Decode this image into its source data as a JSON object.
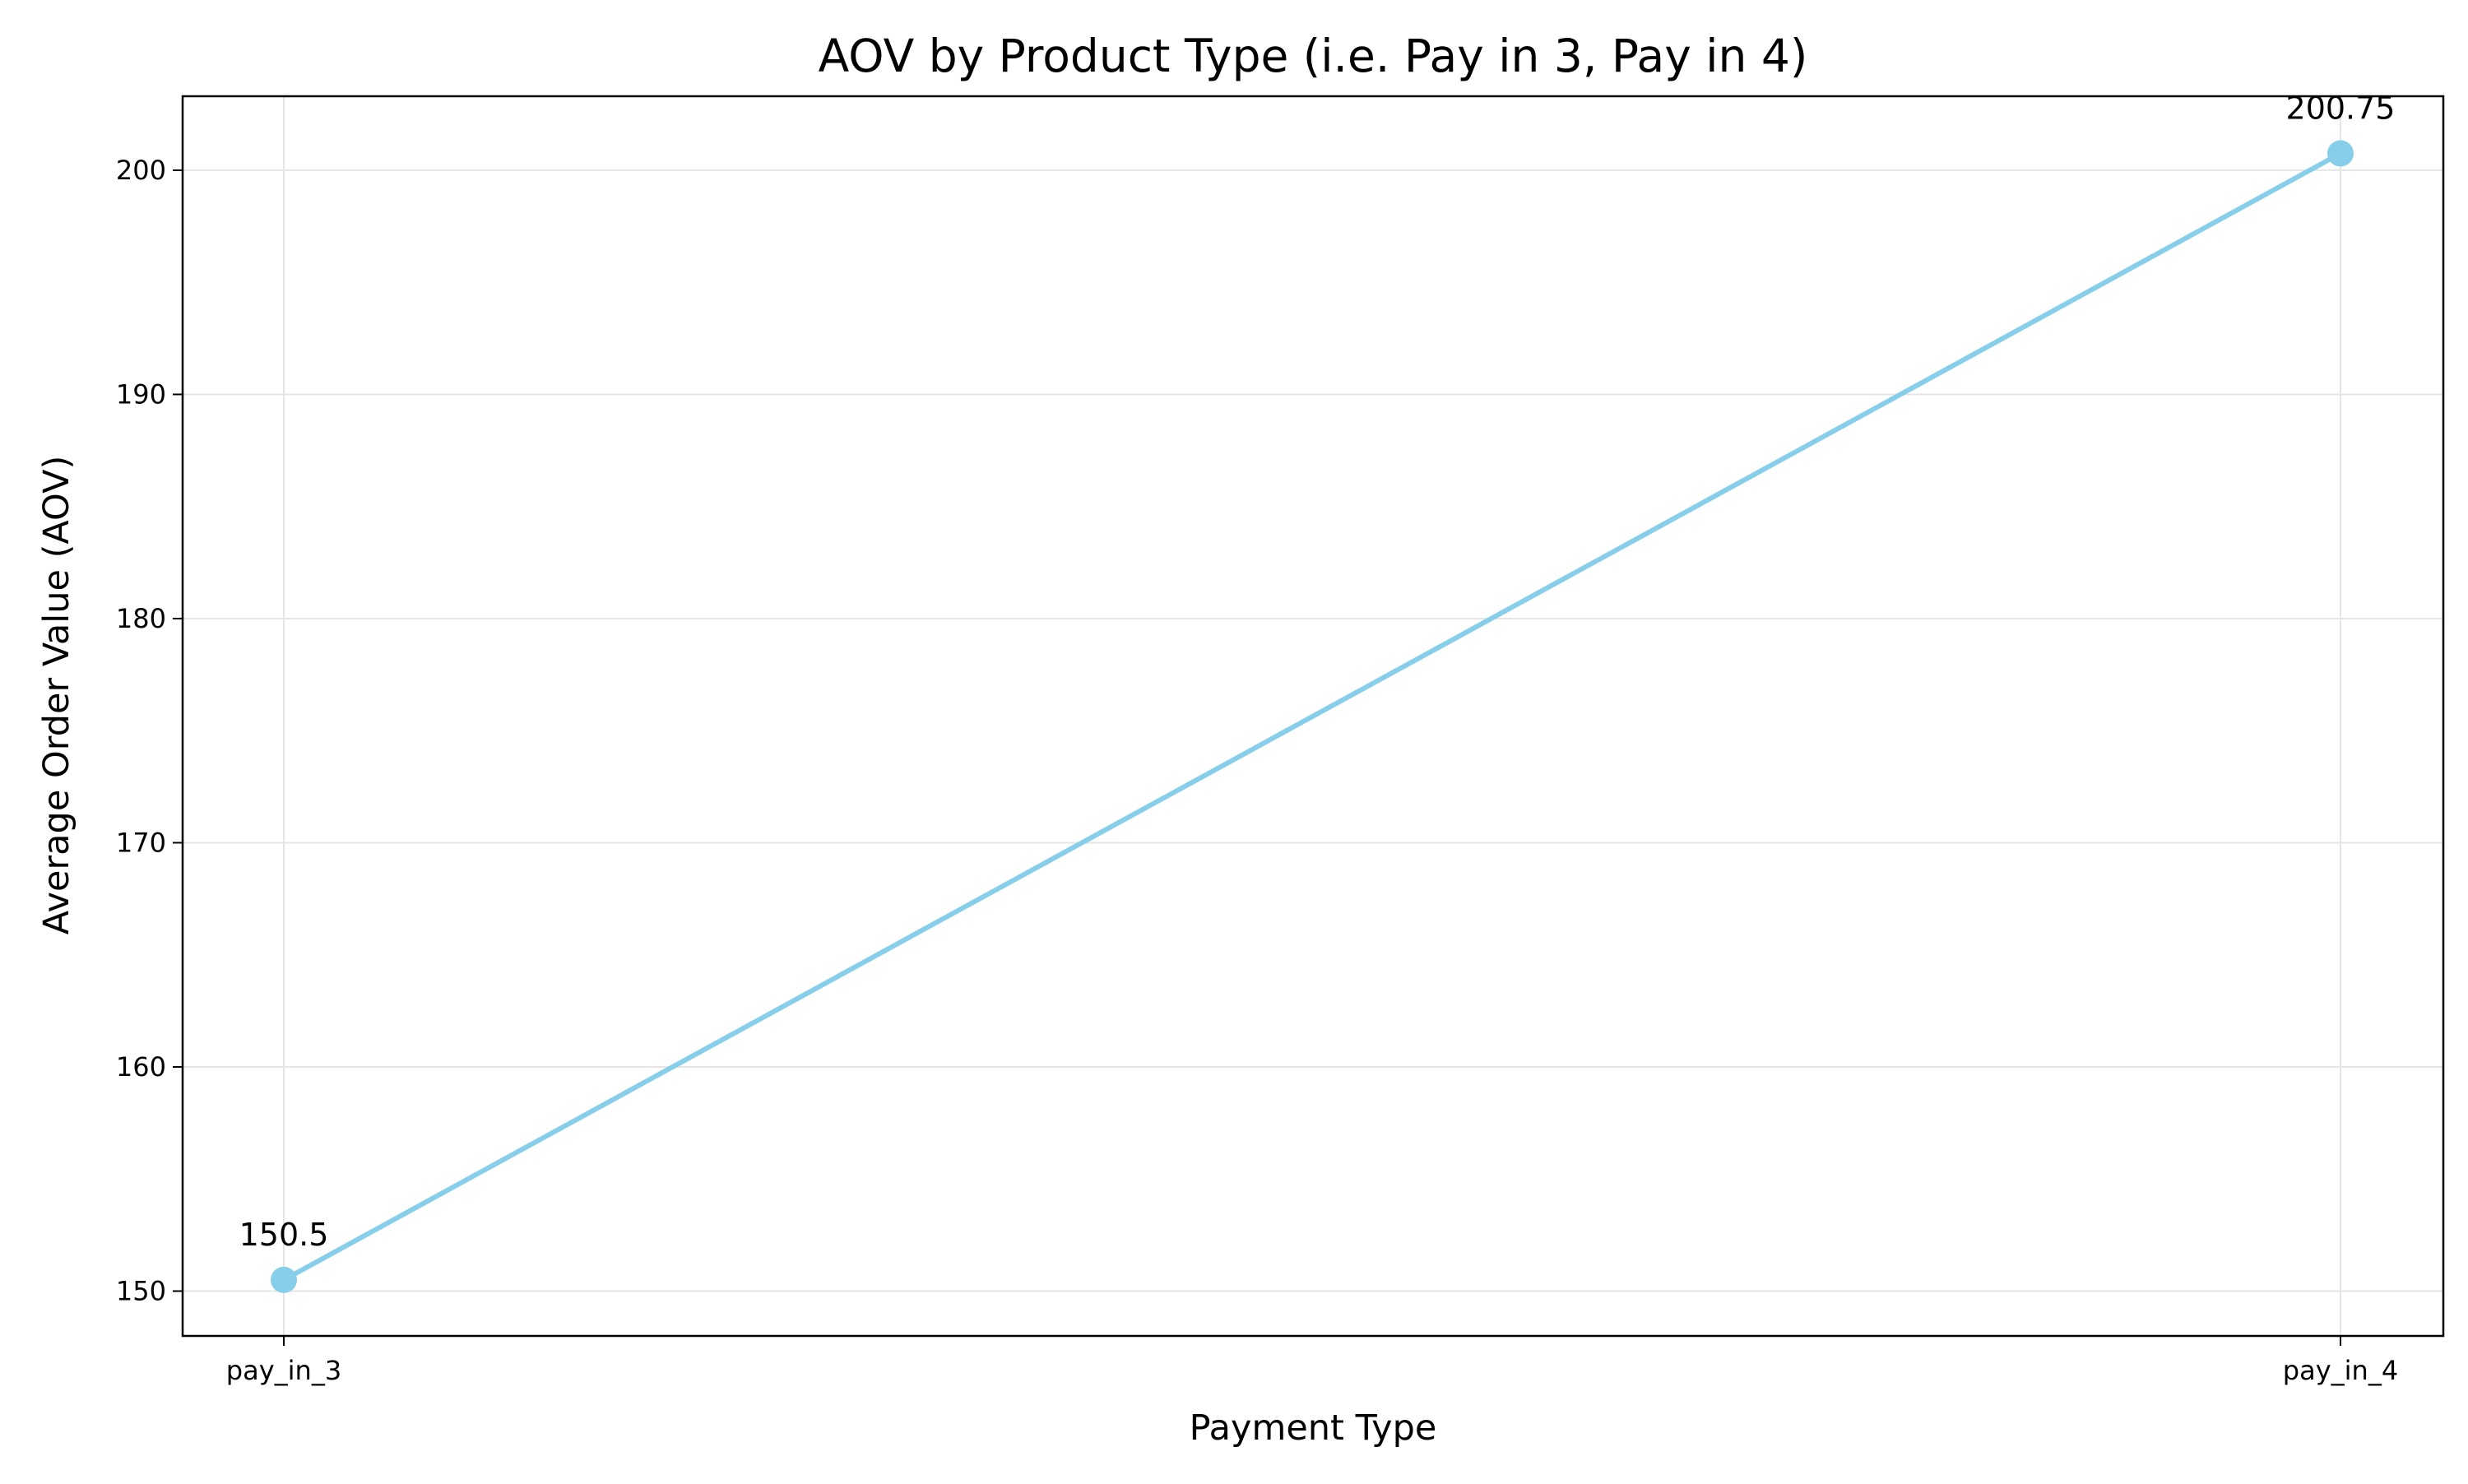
{
  "chart_data": {
    "type": "line",
    "title": "AOV by Product Type (i.e. Pay in 3, Pay in 4)",
    "xlabel": "Payment Type",
    "ylabel": "Average Order Value (AOV)",
    "categories": [
      "pay_in_3",
      "pay_in_4"
    ],
    "series": [
      {
        "values": [
          150.5,
          200.75
        ],
        "data_labels": [
          "150.5",
          "200.75"
        ],
        "color": "#87CEEB",
        "marker": "circle"
      }
    ],
    "ylim": [
      148,
      203.3
    ],
    "yticks": [
      150,
      160,
      170,
      180,
      190,
      200
    ],
    "ytick_labels": [
      "150",
      "160",
      "170",
      "180",
      "190",
      "200"
    ],
    "grid": true,
    "grid_color": "#e5e5e5",
    "legend": "none"
  }
}
